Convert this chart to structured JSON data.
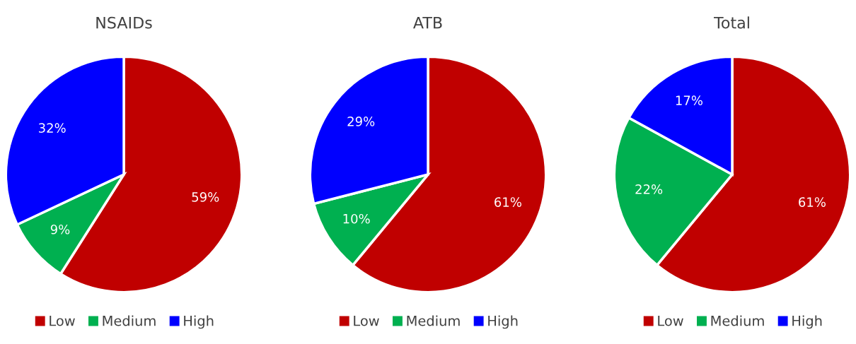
{
  "chart_data": [
    {
      "type": "pie",
      "title": "NSAIDs",
      "categories": [
        "Low",
        "Medium",
        "High"
      ],
      "values": [
        59,
        9,
        32
      ],
      "value_labels": [
        "59%",
        "9%",
        "32%"
      ],
      "colors": [
        "#c00000",
        "#00b050",
        "#0000ff"
      ],
      "legend": "bottom"
    },
    {
      "type": "pie",
      "title": "ATB",
      "categories": [
        "Low",
        "Medium",
        "High"
      ],
      "values": [
        61,
        10,
        29
      ],
      "value_labels": [
        "61%",
        "10%",
        "29%"
      ],
      "colors": [
        "#c00000",
        "#00b050",
        "#0000ff"
      ],
      "legend": "bottom"
    },
    {
      "type": "pie",
      "title": "Total",
      "categories": [
        "Low",
        "Medium",
        "High"
      ],
      "values": [
        61,
        22,
        17
      ],
      "value_labels": [
        "61%",
        "22%",
        "17%"
      ],
      "colors": [
        "#c00000",
        "#00b050",
        "#0000ff"
      ],
      "legend": "bottom"
    }
  ]
}
